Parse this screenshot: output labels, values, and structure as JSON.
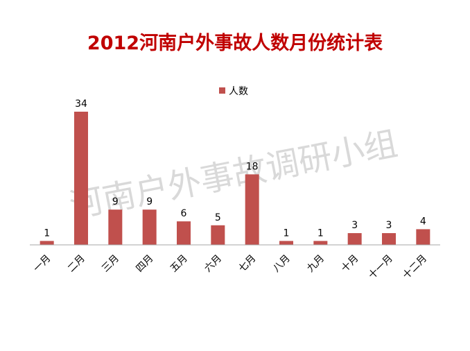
{
  "watermark": "河南户外事故调研小组",
  "colors": {
    "title": "#c00000",
    "bar": "#c0504d",
    "axis": "#a6a6a6",
    "text": "#000000",
    "watermark": "#d9d9d9"
  },
  "chart_data": {
    "type": "bar",
    "title": "2012河南户外事故人数月份统计表",
    "xlabel": "",
    "ylabel": "",
    "categories": [
      "一月",
      "二月",
      "三月",
      "四月",
      "五月",
      "六月",
      "七月",
      "八月",
      "九月",
      "十月",
      "十一月",
      "十二月"
    ],
    "series": [
      {
        "name": "人数",
        "values": [
          1,
          34,
          9,
          9,
          6,
          5,
          18,
          1,
          1,
          3,
          3,
          4
        ]
      }
    ],
    "ylim": [
      0,
      36
    ],
    "grid": false,
    "legend_position": "top-center",
    "data_labels": true
  }
}
